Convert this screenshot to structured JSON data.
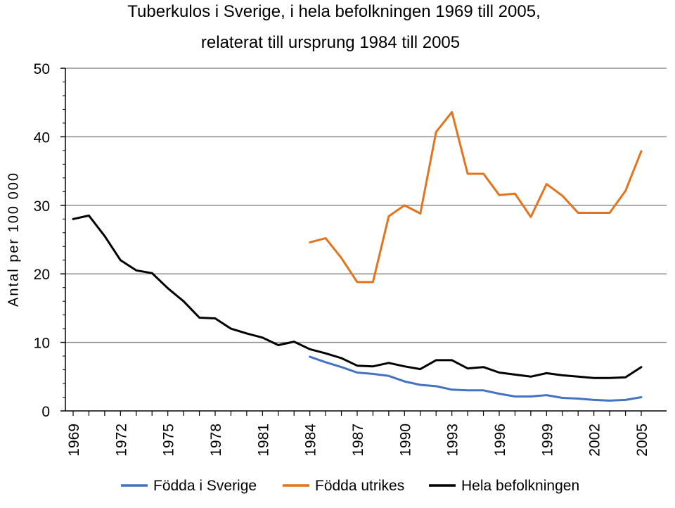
{
  "chart_data": {
    "type": "line",
    "title": "Tuberkulos i Sverige, i hela befolkningen 1969 till  2005,",
    "subtitle": "relaterat till ursprung 1984 till 2005",
    "xlabel": "",
    "ylabel": "Antal per 100 000",
    "ylim": [
      0,
      50
    ],
    "yticks": [
      0,
      10,
      20,
      30,
      40,
      50
    ],
    "xlim": [
      1969,
      2005
    ],
    "xticks": [
      1969,
      1972,
      1975,
      1978,
      1981,
      1984,
      1987,
      1990,
      1993,
      1996,
      1999,
      2002,
      2005
    ],
    "grid": true,
    "legend_position": "bottom",
    "series": [
      {
        "name": "Födda i Sverige",
        "color": "#4472C4",
        "x": [
          1984,
          1985,
          1986,
          1987,
          1988,
          1989,
          1990,
          1991,
          1992,
          1993,
          1994,
          1995,
          1996,
          1997,
          1998,
          1999,
          2000,
          2001,
          2002,
          2003,
          2004,
          2005
        ],
        "values": [
          7.9,
          7.1,
          6.4,
          5.6,
          5.4,
          5.1,
          4.3,
          3.8,
          3.6,
          3.1,
          3.0,
          3.0,
          2.5,
          2.1,
          2.1,
          2.3,
          1.9,
          1.8,
          1.6,
          1.5,
          1.6,
          2.0
        ]
      },
      {
        "name": "Födda utrikes",
        "color": "#E3741D",
        "x": [
          1984,
          1985,
          1986,
          1987,
          1988,
          1989,
          1990,
          1991,
          1992,
          1993,
          1994,
          1995,
          1996,
          1997,
          1998,
          1999,
          2000,
          2001,
          2002,
          2003,
          2004,
          2005
        ],
        "values": [
          24.6,
          25.2,
          22.3,
          18.8,
          18.8,
          28.4,
          30.0,
          28.8,
          40.7,
          43.6,
          34.6,
          34.6,
          31.5,
          31.7,
          28.3,
          33.1,
          31.4,
          28.9,
          28.9,
          28.9,
          32.1,
          37.9
        ]
      },
      {
        "name": "Hela befolkningen",
        "color": "#000000",
        "x": [
          1969,
          1970,
          1971,
          1972,
          1973,
          1974,
          1975,
          1976,
          1977,
          1978,
          1979,
          1980,
          1981,
          1982,
          1983,
          1984,
          1985,
          1986,
          1987,
          1988,
          1989,
          1990,
          1991,
          1992,
          1993,
          1994,
          1995,
          1996,
          1997,
          1998,
          1999,
          2000,
          2001,
          2002,
          2003,
          2004,
          2005
        ],
        "values": [
          28.0,
          28.5,
          25.5,
          22.0,
          20.5,
          20.1,
          17.9,
          16.0,
          13.6,
          13.5,
          12.0,
          11.3,
          10.7,
          9.6,
          10.1,
          9.0,
          8.4,
          7.7,
          6.6,
          6.5,
          7.0,
          6.5,
          6.1,
          7.4,
          7.4,
          6.2,
          6.4,
          5.6,
          5.3,
          5.0,
          5.5,
          5.2,
          5.0,
          4.8,
          4.8,
          4.9,
          6.4
        ]
      }
    ]
  }
}
